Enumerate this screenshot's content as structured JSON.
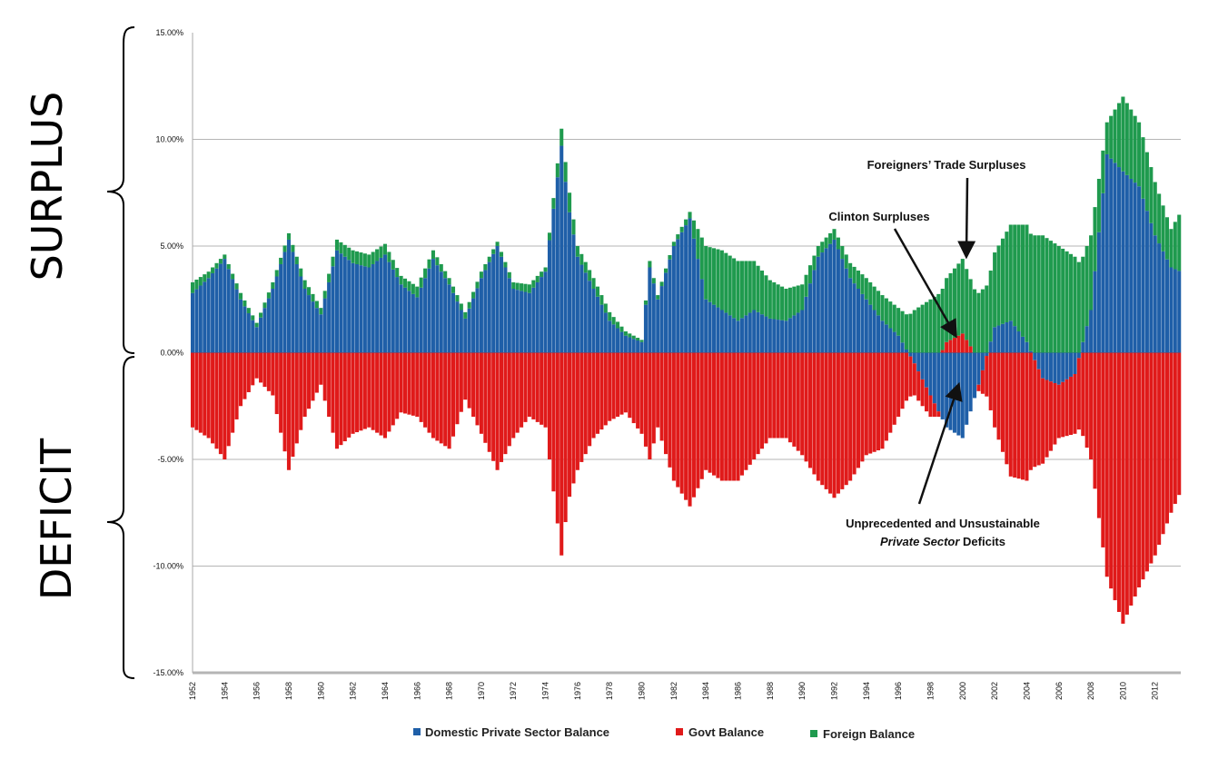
{
  "side_labels": {
    "surplus": "SURPLUS",
    "deficit": "DEFICIT"
  },
  "colors": {
    "private": "#1f5fa8",
    "govt": "#e01a1a",
    "foreign": "#1f9a4e",
    "grid": "#b5b5b5",
    "axis": "#888888"
  },
  "annotations": [
    {
      "text": "Foreigners’ Trade Surpluses",
      "italic": ""
    },
    {
      "text": "Clinton Surpluses",
      "italic": ""
    },
    {
      "text": "Unprecedented and Unsustainable",
      "italic": ""
    },
    {
      "text": " Deficits",
      "italic": "Private Sector"
    }
  ],
  "chart_data": {
    "type": "bar",
    "stacked": true,
    "ylim": [
      -15,
      15
    ],
    "y_ticks": [
      "15.00%",
      "10.00%",
      "5.00%",
      "0.00%",
      "-5.00%",
      "-10.00%",
      "-15.00%"
    ],
    "y_tick_values": [
      15,
      10,
      5,
      0,
      -5,
      -10,
      -15
    ],
    "x_ticks": [
      "1952",
      "1954",
      "1956",
      "1958",
      "1960",
      "1962",
      "1964",
      "1966",
      "1968",
      "1970",
      "1972",
      "1974",
      "1976",
      "1978",
      "1980",
      "1982",
      "1984",
      "1986",
      "1988",
      "1990",
      "1992",
      "1994",
      "1996",
      "1998",
      "2000",
      "2002",
      "2004",
      "2006",
      "2008",
      "2010",
      "2012"
    ],
    "x_range": [
      1952,
      2013.6
    ],
    "grid": "horizontal",
    "legend": {
      "position": "bottom",
      "entries": [
        {
          "name": "Domestic Private Sector Balance",
          "color": "#1f5fa8"
        },
        {
          "name": "Govt Balance",
          "color": "#e01a1a"
        },
        {
          "name": "Foreign Balance",
          "color": "#1f9a4e"
        }
      ]
    },
    "series": [
      {
        "name": "Domestic Private Sector Balance",
        "t": [
          1952,
          1953,
          1954,
          1955,
          1956,
          1957,
          1958,
          1959,
          1960,
          1961,
          1962,
          1963,
          1964,
          1965,
          1966,
          1967,
          1968,
          1969,
          1970,
          1971,
          1972,
          1973,
          1974,
          1975,
          1975.4,
          1976,
          1977,
          1978,
          1979,
          1980,
          1980.5,
          1981,
          1982,
          1983,
          1984,
          1985,
          1986,
          1987,
          1988,
          1989,
          1990,
          1991,
          1992,
          1993,
          1994,
          1995,
          1996,
          1997,
          1998,
          1999,
          2000,
          2001,
          2002,
          2003,
          2004,
          2005,
          2006,
          2007,
          2008,
          2009,
          2010,
          2011,
          2012,
          2013,
          2013.6
        ],
        "v": [
          2.8,
          3.5,
          4.4,
          2.5,
          1.2,
          3.0,
          5.3,
          3.0,
          1.8,
          4.8,
          4.2,
          4.0,
          4.6,
          3.2,
          2.6,
          4.4,
          3.2,
          1.6,
          3.5,
          5.0,
          3.0,
          2.8,
          3.8,
          9.7,
          7.0,
          4.5,
          3.0,
          1.5,
          0.8,
          0.5,
          4.0,
          2.5,
          5.0,
          6.3,
          2.5,
          2.0,
          1.5,
          2.0,
          1.6,
          1.5,
          2.0,
          4.5,
          5.3,
          3.5,
          2.5,
          1.5,
          0.8,
          -0.5,
          -2.0,
          -3.5,
          -4.0,
          -1.5,
          1.2,
          1.5,
          0.5,
          -1.2,
          -1.5,
          -1.0,
          2.0,
          9.3,
          8.5,
          7.8,
          5.5,
          4.0,
          3.8
        ]
      },
      {
        "name": "Govt Balance",
        "t": [
          1952,
          1953,
          1954,
          1955,
          1956,
          1957,
          1958,
          1959,
          1960,
          1961,
          1962,
          1963,
          1964,
          1965,
          1966,
          1967,
          1968,
          1969,
          1970,
          1971,
          1972,
          1973,
          1974,
          1975,
          1975.4,
          1976,
          1977,
          1978,
          1979,
          1980,
          1980.5,
          1981,
          1982,
          1983,
          1984,
          1985,
          1986,
          1987,
          1988,
          1989,
          1990,
          1991,
          1992,
          1993,
          1994,
          1995,
          1996,
          1997,
          1998,
          1999,
          2000,
          2001,
          2002,
          2003,
          2004,
          2005,
          2006,
          2007,
          2008,
          2009,
          2010,
          2011,
          2012,
          2013,
          2013.6
        ],
        "v": [
          -3.5,
          -4.0,
          -5.0,
          -2.5,
          -1.2,
          -2.0,
          -5.5,
          -3.0,
          -1.5,
          -4.5,
          -3.8,
          -3.5,
          -4.0,
          -2.8,
          -3.0,
          -4.0,
          -4.5,
          -2.2,
          -3.8,
          -5.5,
          -4.0,
          -3.0,
          -3.5,
          -9.5,
          -7.0,
          -5.5,
          -4.0,
          -3.2,
          -2.8,
          -3.8,
          -5.0,
          -3.5,
          -6.0,
          -7.2,
          -5.5,
          -6.0,
          -6.0,
          -5.0,
          -4.0,
          -4.0,
          -4.8,
          -6.0,
          -6.8,
          -6.0,
          -4.8,
          -4.5,
          -3.0,
          -1.5,
          -1.0,
          0.5,
          0.9,
          -0.3,
          -3.5,
          -5.8,
          -6.0,
          -4.0,
          -2.5,
          -2.8,
          -5.0,
          -10.5,
          -12.7,
          -11.0,
          -9.5,
          -7.5,
          -6.5
        ]
      },
      {
        "name": "Foreign Balance",
        "t": [
          1952,
          1953,
          1954,
          1955,
          1956,
          1957,
          1958,
          1959,
          1960,
          1961,
          1962,
          1963,
          1964,
          1965,
          1966,
          1967,
          1968,
          1969,
          1970,
          1971,
          1972,
          1973,
          1974,
          1975,
          1975.4,
          1976,
          1977,
          1978,
          1979,
          1980,
          1980.5,
          1981,
          1982,
          1983,
          1984,
          1985,
          1986,
          1987,
          1988,
          1989,
          1990,
          1991,
          1992,
          1993,
          1994,
          1995,
          1996,
          1997,
          1998,
          1999,
          2000,
          2001,
          2002,
          2003,
          2004,
          2005,
          2006,
          2007,
          2008,
          2009,
          2010,
          2011,
          2012,
          2013,
          2013.6
        ],
        "v": [
          0.5,
          0.3,
          0.2,
          0.3,
          0.2,
          0.3,
          0.3,
          0.4,
          0.3,
          0.5,
          0.6,
          0.6,
          0.5,
          0.4,
          0.5,
          0.4,
          0.3,
          0.3,
          0.3,
          0.2,
          0.3,
          0.4,
          0.2,
          0.8,
          1.0,
          0.5,
          0.5,
          0.4,
          0.2,
          0.1,
          0.3,
          0.2,
          0.2,
          0.3,
          2.5,
          2.8,
          2.8,
          2.3,
          1.8,
          1.5,
          1.2,
          0.5,
          0.5,
          0.7,
          1.0,
          1.2,
          1.3,
          2.0,
          2.5,
          3.0,
          3.5,
          2.8,
          3.5,
          4.5,
          5.5,
          5.5,
          5.0,
          4.5,
          3.5,
          1.5,
          3.5,
          3.0,
          2.5,
          1.8,
          2.8
        ]
      }
    ]
  }
}
